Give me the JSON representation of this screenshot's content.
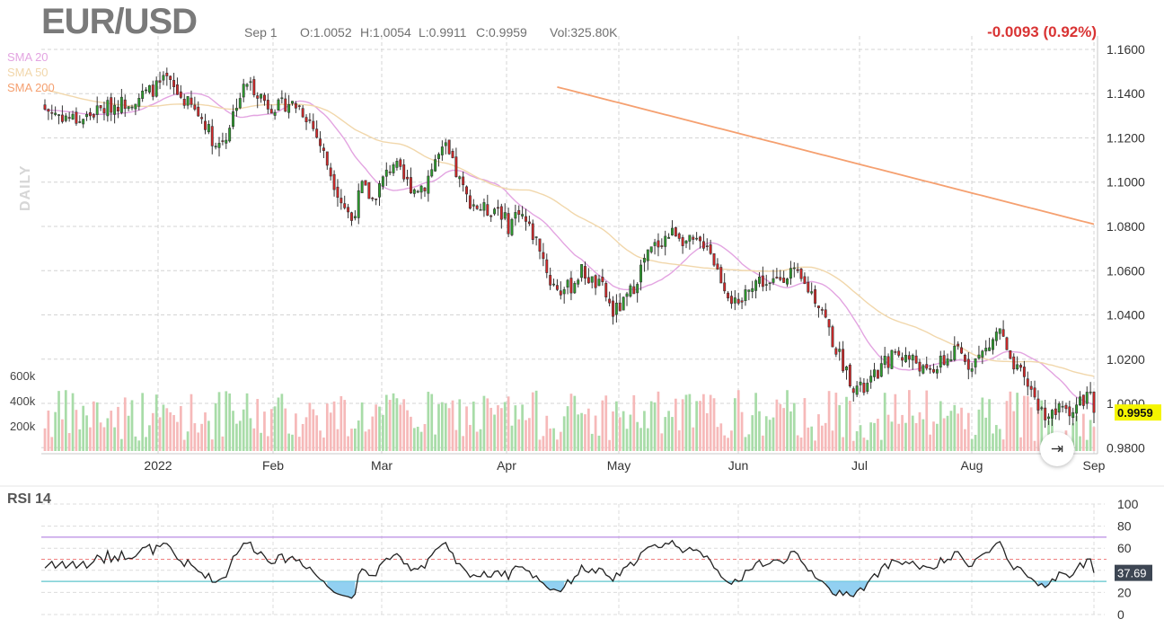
{
  "header": {
    "symbol": "EUR/USD",
    "date": "Sep 1",
    "open": "O:1.0052",
    "high": "H:1.0054",
    "low": "L:0.9911",
    "close": "C:0.9959",
    "volume": "Vol:325.80K",
    "change": "-0.0093 (0.92%)"
  },
  "interval_label": "DAILY",
  "legend": [
    {
      "label": "SMA 20",
      "color": "#e3a4e1"
    },
    {
      "label": "SMA 50",
      "color": "#f1d7ab"
    },
    {
      "label": "SMA 200",
      "color": "#f5a070"
    }
  ],
  "colors": {
    "up": "#2ca02c",
    "down": "#d62728",
    "up_vol": "#a8dca8",
    "down_vol": "#f6b9b9",
    "rsi_line": "#222222",
    "rsi_upper": "#b98be3",
    "rsi_lower": "#5fc6cc",
    "rsi_mid": "#f08080"
  },
  "price_label": "0.9959",
  "rsi_label": "RSI 14",
  "rsi_value_label": "37.69",
  "chart_data": [
    {
      "type": "candlestick",
      "title": "EUR/USD",
      "x_tick_labels": [
        "2022",
        "Feb",
        "Mar",
        "Apr",
        "May",
        "Jun",
        "Jul",
        "Aug",
        "Sep"
      ],
      "y_ticks": [
        "1.1600",
        "1.1400",
        "1.1200",
        "1.1000",
        "1.0800",
        "1.0600",
        "1.0400",
        "1.0200",
        "1.0000",
        "0.9800"
      ],
      "ylim": [
        0.9785,
        1.1612
      ],
      "volume_ticks": [
        "200k",
        "400k",
        "600k"
      ],
      "close_waypoints": [
        [
          0,
          1.133
        ],
        [
          5,
          1.13
        ],
        [
          10,
          1.128
        ],
        [
          15,
          1.132
        ],
        [
          20,
          1.135
        ],
        [
          25,
          1.137
        ],
        [
          30,
          1.141
        ],
        [
          35,
          1.146
        ],
        [
          38,
          1.14
        ],
        [
          42,
          1.134
        ],
        [
          46,
          1.127
        ],
        [
          49,
          1.116
        ],
        [
          52,
          1.121
        ],
        [
          55,
          1.136
        ],
        [
          58,
          1.145
        ],
        [
          61,
          1.141
        ],
        [
          64,
          1.135
        ],
        [
          67,
          1.134
        ],
        [
          70,
          1.136
        ],
        [
          73,
          1.134
        ],
        [
          76,
          1.128
        ],
        [
          79,
          1.117
        ],
        [
          82,
          1.104
        ],
        [
          85,
          1.092
        ],
        [
          88,
          1.083
        ],
        [
          91,
          1.098
        ],
        [
          94,
          1.092
        ],
        [
          97,
          1.101
        ],
        [
          100,
          1.109
        ],
        [
          103,
          1.101
        ],
        [
          106,
          1.097
        ],
        [
          109,
          1.099
        ],
        [
          112,
          1.11
        ],
        [
          115,
          1.115
        ],
        [
          118,
          1.104
        ],
        [
          121,
          1.093
        ],
        [
          124,
          1.089
        ],
        [
          127,
          1.087
        ],
        [
          130,
          1.089
        ],
        [
          133,
          1.08
        ],
        [
          136,
          1.088
        ],
        [
          139,
          1.079
        ],
        [
          142,
          1.071
        ],
        [
          145,
          1.055
        ],
        [
          148,
          1.051
        ],
        [
          151,
          1.053
        ],
        [
          154,
          1.06
        ],
        [
          157,
          1.055
        ],
        [
          160,
          1.052
        ],
        [
          163,
          1.041
        ],
        [
          166,
          1.045
        ],
        [
          169,
          1.053
        ],
        [
          172,
          1.065
        ],
        [
          175,
          1.071
        ],
        [
          178,
          1.075
        ],
        [
          181,
          1.078
        ],
        [
          184,
          1.073
        ],
        [
          187,
          1.072
        ],
        [
          190,
          1.073
        ],
        [
          193,
          1.06
        ],
        [
          196,
          1.05
        ],
        [
          199,
          1.042
        ],
        [
          202,
          1.054
        ],
        [
          205,
          1.056
        ],
        [
          208,
          1.053
        ],
        [
          211,
          1.057
        ],
        [
          214,
          1.06
        ],
        [
          217,
          1.055
        ],
        [
          220,
          1.05
        ],
        [
          223,
          1.043
        ],
        [
          226,
          1.028
        ],
        [
          229,
          1.018
        ],
        [
          232,
          1.008
        ],
        [
          235,
          1.006
        ],
        [
          238,
          1.012
        ],
        [
          241,
          1.018
        ],
        [
          244,
          1.023
        ],
        [
          247,
          1.021
        ],
        [
          250,
          1.019
        ],
        [
          253,
          1.013
        ],
        [
          256,
          1.017
        ],
        [
          259,
          1.02
        ],
        [
          262,
          1.024
        ],
        [
          265,
          1.018
        ],
        [
          268,
          1.021
        ],
        [
          271,
          1.026
        ],
        [
          274,
          1.034
        ],
        [
          277,
          1.017
        ],
        [
          280,
          1.013
        ],
        [
          283,
          1.006
        ],
        [
          286,
          0.996
        ],
        [
          289,
          0.995
        ],
        [
          292,
          0.998
        ],
        [
          295,
          0.997
        ],
        [
          298,
          1.002
        ],
        [
          300,
          1.0052
        ],
        [
          301,
          0.9959
        ]
      ],
      "volume_range": [
        80,
        490
      ],
      "sma_periods": [
        20,
        50,
        200
      ]
    },
    {
      "type": "line",
      "title": "RSI 14",
      "y_ticks": [
        "100",
        "80",
        "60",
        "40",
        "20",
        "0"
      ],
      "ylim": [
        0,
        100
      ],
      "levels": [
        70,
        50,
        30
      ],
      "period": 14,
      "last": 37.69
    }
  ]
}
